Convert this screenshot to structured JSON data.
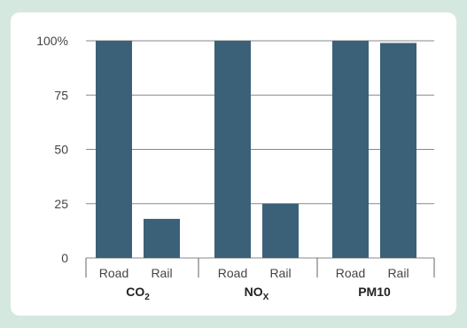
{
  "colors": {
    "background": "#d4e8df",
    "panel": "#ffffff",
    "bar": "#3b6178",
    "grid": "#888888"
  },
  "chart_data": {
    "type": "bar",
    "ylim": [
      0,
      100
    ],
    "yticks": [
      {
        "value": 100,
        "label": "100%"
      },
      {
        "value": 75,
        "label": "75"
      },
      {
        "value": 50,
        "label": "50"
      },
      {
        "value": 25,
        "label": "25"
      },
      {
        "value": 0,
        "label": "0"
      }
    ],
    "grid": true,
    "groups": [
      {
        "label": "CO",
        "sub": "2",
        "bars": [
          {
            "category": "Road",
            "value": 100
          },
          {
            "category": "Rail",
            "value": 18
          }
        ]
      },
      {
        "label": "NO",
        "sub": "X",
        "bars": [
          {
            "category": "Road",
            "value": 100
          },
          {
            "category": "Rail",
            "value": 25
          }
        ]
      },
      {
        "label": "PM10",
        "sub": "",
        "bars": [
          {
            "category": "Road",
            "value": 100
          },
          {
            "category": "Rail",
            "value": 99
          }
        ]
      }
    ]
  }
}
